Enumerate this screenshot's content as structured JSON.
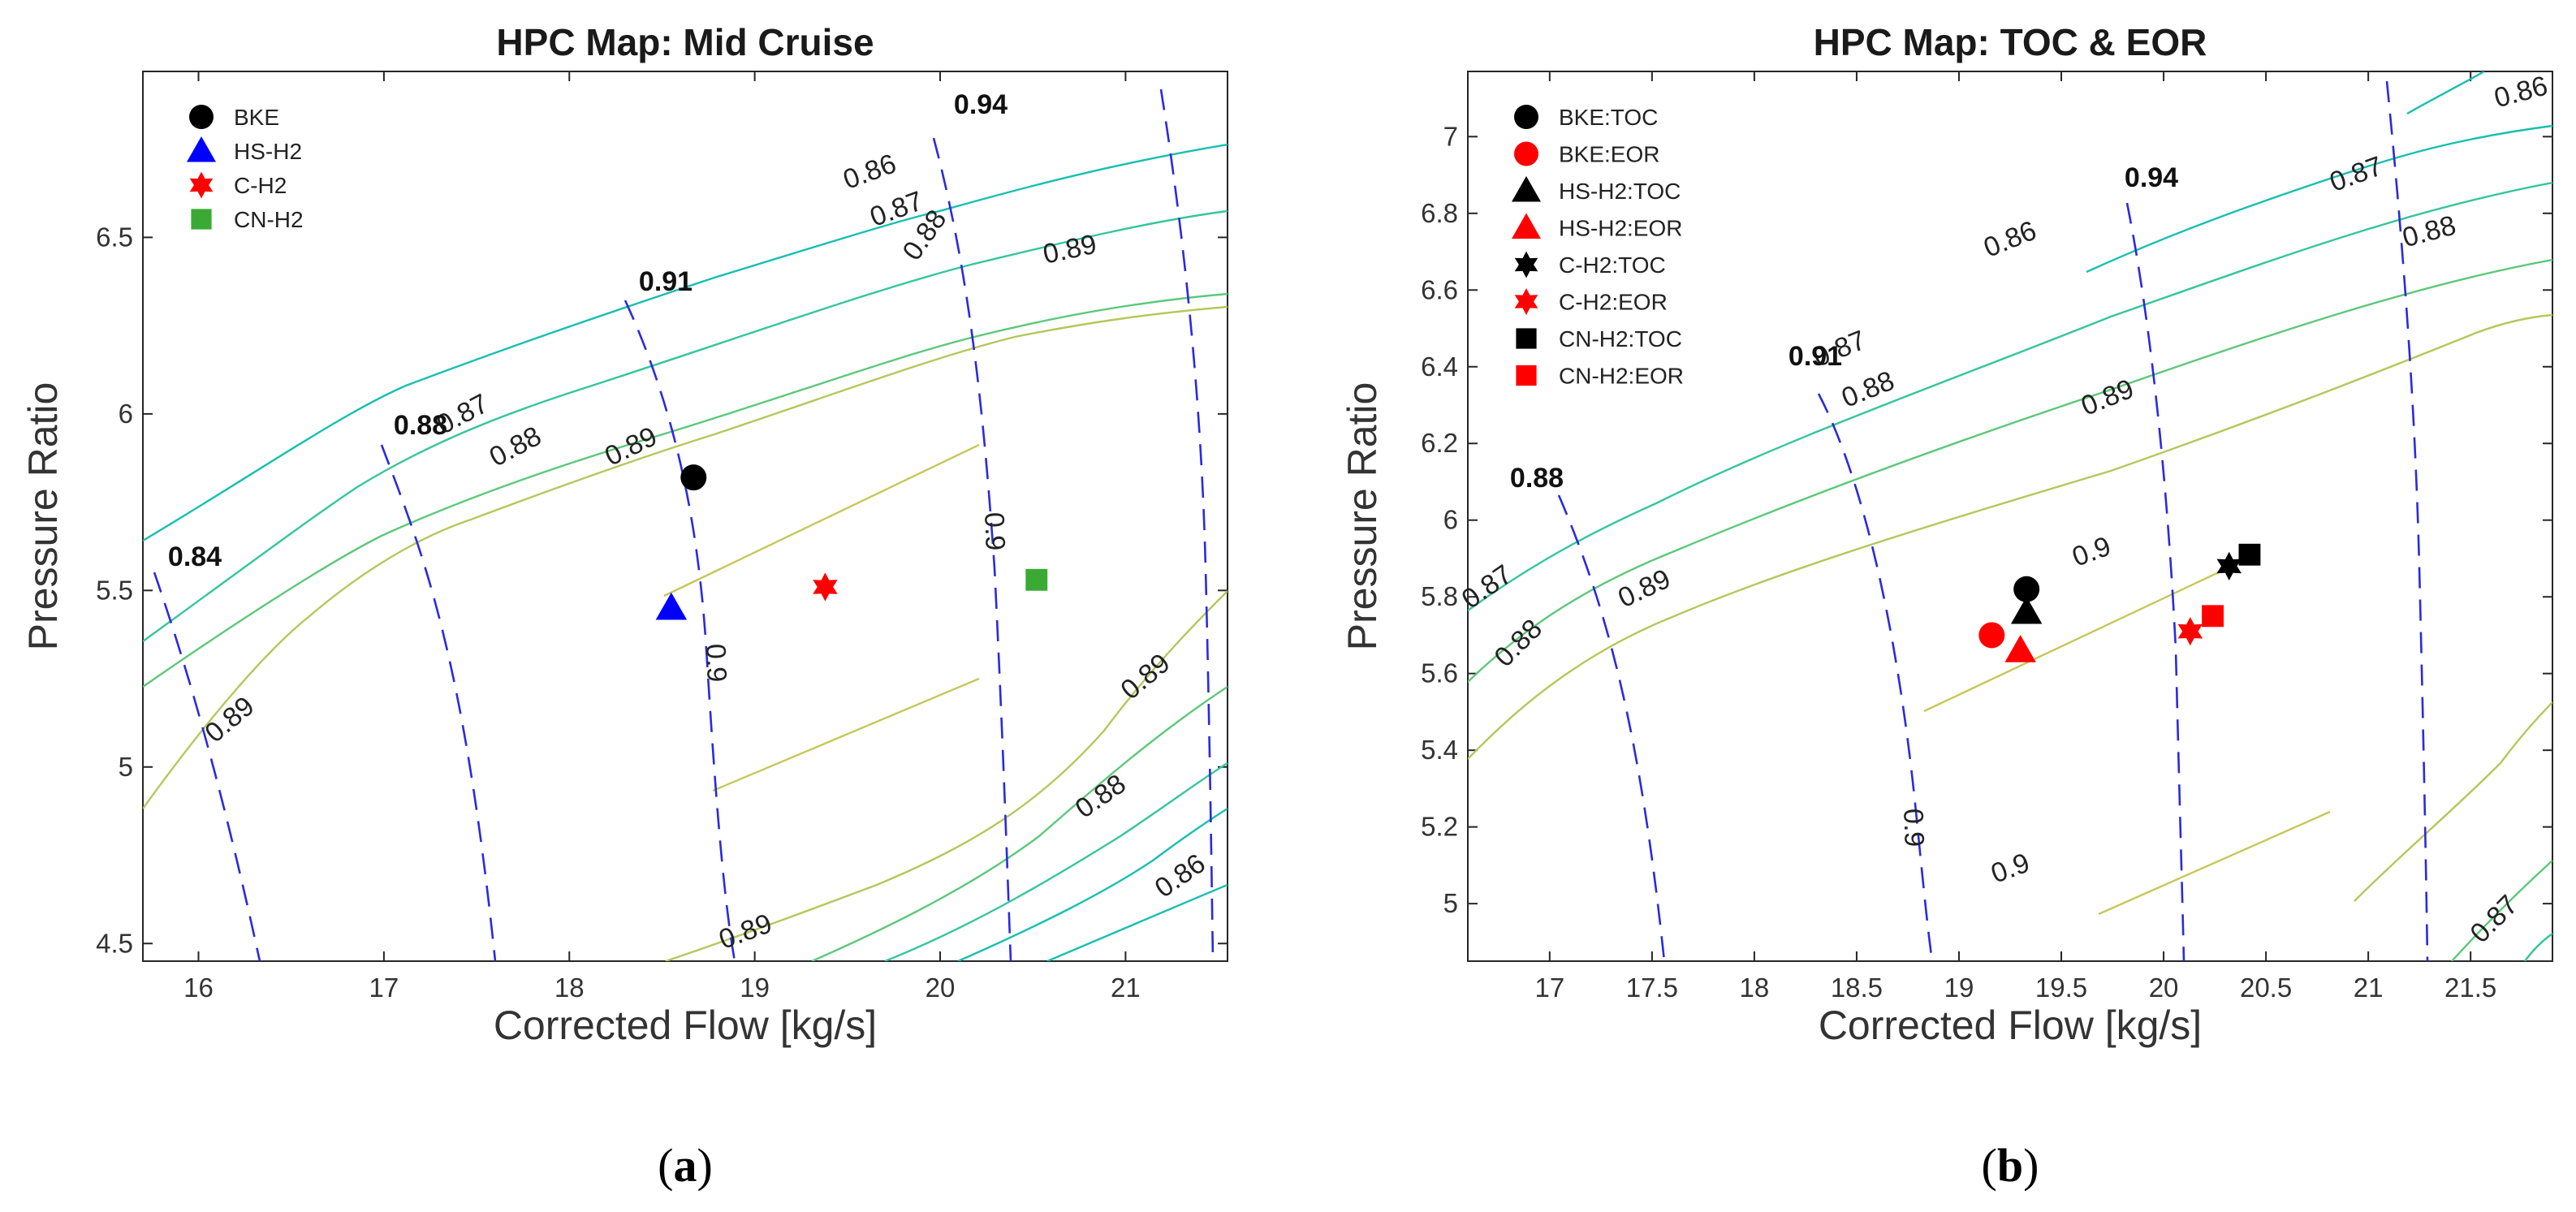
{
  "chart_data": [
    {
      "panel": "a",
      "type": "scatter",
      "title": "HPC Map: Mid Cruise",
      "xlabel": "Corrected Flow [kg/s]",
      "ylabel": "Pressure Ratio",
      "xlim": [
        15.7,
        21.55
      ],
      "ylim": [
        4.45,
        6.97
      ],
      "xticks": [
        "16",
        "17",
        "18",
        "19",
        "20",
        "21"
      ],
      "yticks": [
        "4.5",
        "5",
        "5.5",
        "6",
        "6.5"
      ],
      "legend_position": "top-left",
      "points": [
        {
          "name": "BKE",
          "x": 18.67,
          "y": 5.82,
          "marker": "circle",
          "color": "#000000"
        },
        {
          "name": "HS-H2",
          "x": 18.55,
          "y": 5.45,
          "marker": "triangle",
          "color": "#0000ff"
        },
        {
          "name": "C-H2",
          "x": 19.38,
          "y": 5.51,
          "marker": "hexagram",
          "color": "#ff0000"
        },
        {
          "name": "CN-H2",
          "x": 20.52,
          "y": 5.53,
          "marker": "square",
          "color": "#3aaa35"
        }
      ],
      "efficiency_contour_labels": [
        "0.86",
        "0.87",
        "0.88",
        "0.89",
        "0.87",
        "0.88",
        "0.89",
        "0.89",
        "0.89",
        "0.88",
        "0.86"
      ],
      "speed_line_labels": [
        "0.84",
        "0.88",
        "0.91",
        "0.94",
        "0.9",
        "0.9"
      ]
    },
    {
      "panel": "b",
      "type": "scatter",
      "title": "HPC Map: TOC & EOR",
      "xlabel": "Corrected Flow [kg/s]",
      "ylabel": "Pressure Ratio",
      "xlim": [
        16.6,
        21.9
      ],
      "ylim": [
        4.85,
        7.17
      ],
      "xticks": [
        "17",
        "17.5",
        "18",
        "18.5",
        "19",
        "19.5",
        "20",
        "20.5",
        "21",
        "21.5"
      ],
      "yticks": [
        "5",
        "5.2",
        "5.4",
        "5.6",
        "5.8",
        "6",
        "6.2",
        "6.4",
        "6.6",
        "6.8",
        "7"
      ],
      "legend_position": "top-left",
      "points": [
        {
          "name": "BKE:TOC",
          "x": 19.33,
          "y": 5.82,
          "marker": "circle",
          "color": "#000000"
        },
        {
          "name": "BKE:EOR",
          "x": 19.16,
          "y": 5.7,
          "marker": "circle",
          "color": "#ff0000"
        },
        {
          "name": "HS-H2:TOC",
          "x": 19.33,
          "y": 5.76,
          "marker": "triangle",
          "color": "#000000"
        },
        {
          "name": "HS-H2:EOR",
          "x": 19.3,
          "y": 5.66,
          "marker": "triangle",
          "color": "#ff0000"
        },
        {
          "name": "C-H2:TOC",
          "x": 20.32,
          "y": 5.88,
          "marker": "hexagram",
          "color": "#000000"
        },
        {
          "name": "C-H2:EOR",
          "x": 20.13,
          "y": 5.71,
          "marker": "hexagram",
          "color": "#ff0000"
        },
        {
          "name": "CN-H2:TOC",
          "x": 20.42,
          "y": 5.91,
          "marker": "square",
          "color": "#000000"
        },
        {
          "name": "CN-H2:EOR",
          "x": 20.24,
          "y": 5.75,
          "marker": "square",
          "color": "#ff0000"
        }
      ],
      "efficiency_contour_labels": [
        "0.86",
        "0.87",
        "0.86",
        "0.87",
        "0.88",
        "0.88",
        "0.89",
        "0.87",
        "0.88",
        "0.89",
        "0.9",
        "0.9",
        "0.87"
      ],
      "speed_line_labels": [
        "0.88",
        "0.91",
        "0.94",
        "0.9"
      ]
    }
  ],
  "subfigure_labels": {
    "a": {
      "open": "(",
      "letter": "a",
      "close": ")"
    },
    "b": {
      "open": "(",
      "letter": "b",
      "close": ")"
    }
  },
  "colors": {
    "speed_line": "#2a2ae0",
    "contour_teal": "#17bfb0",
    "contour_green": "#5cc87a",
    "contour_yellow": "#b5c75a"
  }
}
